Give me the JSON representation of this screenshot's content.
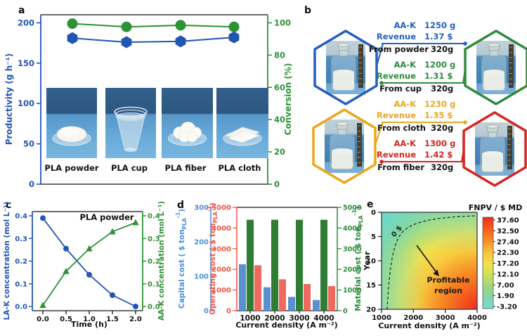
{
  "panels": {
    "a": "a",
    "b": "b",
    "c": "c",
    "d": "d",
    "e": "e"
  },
  "colors": {
    "series_blue": "#2255b4",
    "series_green": "#2e9235",
    "bar_blue": "#5b8fd0",
    "bar_green": "#2e7d32",
    "bar_red": "#f0695f",
    "axis_capital": "#4a90d8",
    "axis_operating": "#f25443",
    "axis_material": "#2e8b3c",
    "spine_dark": "#3a3a3a"
  },
  "chart_data": [
    {
      "panel": "a",
      "type": "line",
      "categories": [
        "PLA powder",
        "PLA cup",
        "PLA fiber",
        "PLA cloth"
      ],
      "photo_kinds": [
        "powder",
        "cup",
        "fiber",
        "cloth"
      ],
      "series": [
        {
          "name": "Productivity",
          "axis": "left",
          "marker": "hexagon",
          "color": "#2255b4",
          "values": [
            181,
            176,
            177,
            182
          ]
        },
        {
          "name": "Conversion",
          "axis": "right",
          "marker": "circle",
          "color": "#2e9235",
          "values": [
            99.5,
            97.5,
            98.5,
            97.5
          ]
        }
      ],
      "ylabel_left": "Productivity (g h⁻¹)",
      "ylabel_right": "Conversion (%)",
      "yticks_left": [
        0,
        50,
        100,
        150,
        200
      ],
      "yticks_right": [
        0,
        20,
        40,
        60,
        80,
        100
      ],
      "ylim_left": [
        0,
        210
      ],
      "ylim_right": [
        0,
        105
      ],
      "legend_position": "none",
      "grid": false
    },
    {
      "panel": "c",
      "type": "line",
      "title": "PLA powder",
      "x": [
        0.0,
        0.5,
        1.0,
        1.5,
        2.0
      ],
      "xticks": [
        "0.0",
        "0.5",
        "1.0",
        "1.5",
        "2.0"
      ],
      "xlabel": "Time (h)",
      "series": [
        {
          "name": "LA-K concentration",
          "axis": "left",
          "marker": "circle",
          "color": "#2255b4",
          "values": [
            0.39,
            0.255,
            0.14,
            0.05,
            0.0
          ]
        },
        {
          "name": "AA-K concentration",
          "axis": "right",
          "marker": "triangle",
          "color": "#2e9235",
          "values": [
            0.005,
            0.155,
            0.255,
            0.33,
            0.37
          ]
        }
      ],
      "ylabel_left": "LA-K concentration (mol L⁻¹)",
      "ylabel_right": "AA-K concentration (mol L⁻¹)",
      "yticks": [
        "0.0",
        "0.1",
        "0.2",
        "0.3",
        "0.4"
      ],
      "ylim": [
        0,
        0.4
      ],
      "grid": false
    },
    {
      "panel": "d",
      "type": "bar",
      "categories": [
        "1000",
        "2000",
        "3000",
        "4000"
      ],
      "xlabel": "Current density (A m⁻²)",
      "series": [
        {
          "name": "Capital cost",
          "axis": "capital",
          "color": "#5b8fd0",
          "values": [
            135,
            68,
            40,
            31
          ]
        },
        {
          "name": "Material cost",
          "axis": "material",
          "color": "#2e7d32",
          "values": [
            4400,
            4400,
            4400,
            4400
          ]
        },
        {
          "name": "Operating cost",
          "axis": "operating",
          "color": "#f0695f",
          "values": [
            2200,
            1520,
            1290,
            1190
          ]
        }
      ],
      "axes": {
        "capital": {
          "pre": "Capital cost ( $ ton",
          "sub": "PLA",
          "sup": "-1",
          "post": ")",
          "color": "#4a90d8",
          "ticks": [
            0,
            100,
            200,
            300
          ],
          "lim": [
            0,
            300
          ]
        },
        "operating": {
          "pre": "Operating cost ( $ ton",
          "sub": "PLA",
          "sup": "-1",
          "post": ")",
          "color": "#f25443",
          "ticks": [
            0,
            1000,
            2000,
            3000,
            4000,
            5000
          ],
          "lim": [
            0,
            5000
          ]
        },
        "material": {
          "pre": "Material cost ( $ ton",
          "sub": "PLA",
          "sup": "-1",
          "post": ")",
          "color": "#2e8b3c",
          "ticks": [
            0,
            1000,
            2000,
            3000,
            4000,
            5000
          ],
          "lim": [
            0,
            5000
          ]
        }
      }
    },
    {
      "panel": "e",
      "type": "heatmap",
      "xlabel": "Current density (A m⁻²)",
      "ylabel": "Year",
      "xticks": [
        1000,
        2000,
        3000,
        4000
      ],
      "yticks": [
        0,
        5,
        10,
        15,
        20
      ],
      "xlim": [
        1000,
        4000
      ],
      "ylim": [
        0,
        20
      ],
      "y_inverted": true,
      "annotations": {
        "zero_dollar": "0 $",
        "profitable_1": "Profitable",
        "profitable_2": "region"
      },
      "colorbar": {
        "title": "FNPV / $ MD",
        "tick_labels": [
          "37.60",
          "32.50",
          "27.40",
          "22.30",
          "17.20",
          "12.10",
          "7.00",
          "1.90",
          "-3.20"
        ],
        "colors_top_to_bottom": [
          "#ee2e1a",
          "#f55a1e",
          "#f98e24",
          "#f7c83e",
          "#f2e14e",
          "#c8e060",
          "#9cd67c",
          "#82d5b0",
          "#7adcd4"
        ],
        "offsets": [
          0,
          0.12,
          0.26,
          0.4,
          0.52,
          0.64,
          0.76,
          0.88,
          1
        ]
      },
      "trend": "FNPV increases toward high current density and later years; dashed 0 $ break-even hyperbola separates profitable region"
    }
  ],
  "panel_b": {
    "entries": [
      {
        "name": "powder",
        "aak_label": "AA-K",
        "aak_value": "1250 g",
        "revenue_label": "Revenue",
        "revenue_value": "1.37 $",
        "source_text": "From powder",
        "mass_text": "320g",
        "color": "#2460bd"
      },
      {
        "name": "cup",
        "aak_label": "AA-K",
        "aak_value": "1200 g",
        "revenue_label": "Revenue",
        "revenue_value": "1.31 $",
        "source_text": "From cup",
        "mass_text": "320g",
        "color": "#2e8b3c"
      },
      {
        "name": "cloth",
        "aak_label": "AA-K",
        "aak_value": "1230 g",
        "revenue_label": "Revenue",
        "revenue_value": "1.35 $",
        "source_text": "From cloth",
        "mass_text": "320g",
        "color": "#eaa71e"
      },
      {
        "name": "fiber",
        "aak_label": "AA-K",
        "aak_value": "1300 g",
        "revenue_label": "Revenue",
        "revenue_value": "1.42 $",
        "source_text": "From fiber",
        "mass_text": "320g",
        "color": "#d6251f"
      }
    ]
  }
}
